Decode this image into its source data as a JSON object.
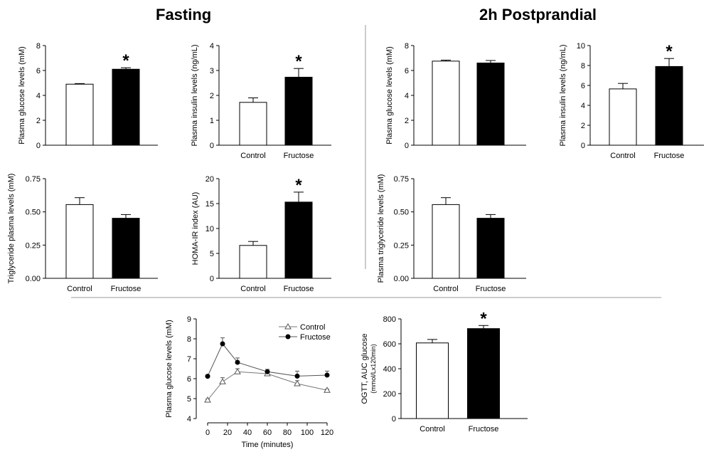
{
  "sections": {
    "fasting": "Fasting",
    "postprandial": "2h Postprandial"
  },
  "significance_marker": "*",
  "chart_data": [
    {
      "id": "fasting-glucose",
      "type": "bar",
      "ylabel": "Plasma glucose levels (mM)",
      "ylim": [
        0,
        8
      ],
      "yticks": [
        "0",
        "2",
        "4",
        "6",
        "8"
      ],
      "categories": [
        "Control",
        "Fructose"
      ],
      "show_categories": false,
      "values": [
        4.9,
        6.1
      ],
      "errors": [
        0.05,
        0.12
      ],
      "fills": [
        "#ffffff",
        "#000000"
      ],
      "significant": [
        false,
        true
      ]
    },
    {
      "id": "fasting-insulin",
      "type": "bar",
      "ylabel": "Plasma insulin levels (ng/mL)",
      "ylim": [
        0,
        4
      ],
      "yticks": [
        "0",
        "1",
        "2",
        "3",
        "4"
      ],
      "categories": [
        "Control",
        "Fructose"
      ],
      "show_categories": true,
      "values": [
        1.72,
        2.73
      ],
      "errors": [
        0.18,
        0.35
      ],
      "fills": [
        "#ffffff",
        "#000000"
      ],
      "significant": [
        false,
        true
      ]
    },
    {
      "id": "post-glucose",
      "type": "bar",
      "ylabel": "Plasma glucose levels (mM)",
      "ylim": [
        0,
        8
      ],
      "yticks": [
        "0",
        "2",
        "4",
        "6",
        "8"
      ],
      "categories": [
        "Control",
        "Fructose"
      ],
      "show_categories": false,
      "values": [
        6.75,
        6.6
      ],
      "errors": [
        0.08,
        0.2
      ],
      "fills": [
        "#ffffff",
        "#000000"
      ],
      "significant": [
        false,
        false
      ]
    },
    {
      "id": "post-insulin",
      "type": "bar",
      "ylabel": "Plasma insulin levels (ng/mL)",
      "ylim": [
        0,
        10
      ],
      "yticks": [
        "0",
        "2",
        "4",
        "6",
        "8",
        "10"
      ],
      "categories": [
        "Control",
        "Fructose"
      ],
      "show_categories": true,
      "values": [
        5.65,
        7.9
      ],
      "errors": [
        0.55,
        0.8
      ],
      "fills": [
        "#ffffff",
        "#000000"
      ],
      "significant": [
        false,
        true
      ]
    },
    {
      "id": "fasting-tg",
      "type": "bar",
      "ylabel": "Triglyceride plasma levels (mM)",
      "ylim": [
        0,
        0.75
      ],
      "yticks": [
        "0.00",
        "0.25",
        "0.50",
        "0.75"
      ],
      "categories": [
        "Control",
        "Fructose"
      ],
      "show_categories": true,
      "values": [
        0.555,
        0.452
      ],
      "errors": [
        0.052,
        0.028
      ],
      "fills": [
        "#ffffff",
        "#000000"
      ],
      "significant": [
        false,
        false
      ]
    },
    {
      "id": "homa",
      "type": "bar",
      "ylabel": "HOMA-IR index (AU)",
      "ylim": [
        0,
        20
      ],
      "yticks": [
        "0",
        "5",
        "10",
        "15",
        "20"
      ],
      "categories": [
        "Control",
        "Fructose"
      ],
      "show_categories": true,
      "values": [
        6.6,
        15.3
      ],
      "errors": [
        0.8,
        2.0
      ],
      "fills": [
        "#ffffff",
        "#000000"
      ],
      "significant": [
        false,
        true
      ]
    },
    {
      "id": "post-tg",
      "type": "bar",
      "ylabel": "Plasma triglyceride levels (mM)",
      "ylim": [
        0,
        0.75
      ],
      "yticks": [
        "0.00",
        "0.25",
        "0.50",
        "0.75"
      ],
      "categories": [
        "Control",
        "Fructose"
      ],
      "show_categories": true,
      "values": [
        0.555,
        0.452
      ],
      "errors": [
        0.052,
        0.028
      ],
      "fills": [
        "#ffffff",
        "#000000"
      ],
      "significant": [
        false,
        false
      ]
    },
    {
      "id": "ogtt",
      "type": "line",
      "xlabel": "Time (minutes)",
      "ylabel": "Plasma glucose levels (mM)",
      "xlim": [
        0,
        120
      ],
      "ylim": [
        4,
        9
      ],
      "xticks": [
        "0",
        "20",
        "40",
        "60",
        "80",
        "100",
        "120"
      ],
      "yticks": [
        "4",
        "5",
        "6",
        "7",
        "8",
        "9"
      ],
      "x": [
        0,
        15,
        30,
        60,
        90,
        120
      ],
      "series": [
        {
          "name": "Control",
          "marker": "open-triangle",
          "values": [
            4.93,
            5.85,
            6.35,
            6.25,
            5.75,
            5.42
          ],
          "errors": [
            0.05,
            0.2,
            0.15,
            0.1,
            0.15,
            0.05
          ]
        },
        {
          "name": "Fructose",
          "marker": "filled-circle",
          "values": [
            6.12,
            7.75,
            6.82,
            6.35,
            6.13,
            6.18
          ],
          "errors": [
            0.05,
            0.3,
            0.22,
            0.12,
            0.25,
            0.2
          ]
        }
      ],
      "legend": "top-right"
    },
    {
      "id": "auc",
      "type": "bar",
      "ylabel": "OGTT, AUC glucose",
      "ylabel2": "(mmol/Lx120min)",
      "ylim": [
        0,
        800
      ],
      "yticks": [
        "0",
        "200",
        "400",
        "600",
        "800"
      ],
      "categories": [
        "Control",
        "Fructose"
      ],
      "show_categories": true,
      "values": [
        607,
        722
      ],
      "errors": [
        28,
        25
      ],
      "fills": [
        "#ffffff",
        "#000000"
      ],
      "significant": [
        false,
        true
      ]
    }
  ]
}
